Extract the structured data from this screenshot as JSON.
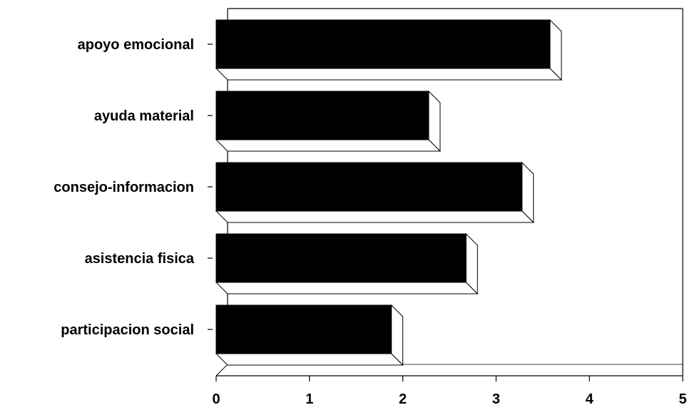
{
  "chart_data": {
    "type": "bar",
    "orientation": "horizontal",
    "style": "3d",
    "categories": [
      "apoyo emocional",
      "ayuda material",
      "consejo-informacion",
      "asistencia fisica",
      "participacion social"
    ],
    "values": [
      3.7,
      2.4,
      3.4,
      2.8,
      2.0
    ],
    "xlim": [
      0,
      5
    ],
    "x_ticks": [
      "0",
      "1",
      "2",
      "3",
      "4",
      "5"
    ],
    "title": "",
    "xlabel": "",
    "ylabel": "",
    "grid": false,
    "legend": "none",
    "bar_color": "#000000",
    "background": "#ffffff"
  }
}
